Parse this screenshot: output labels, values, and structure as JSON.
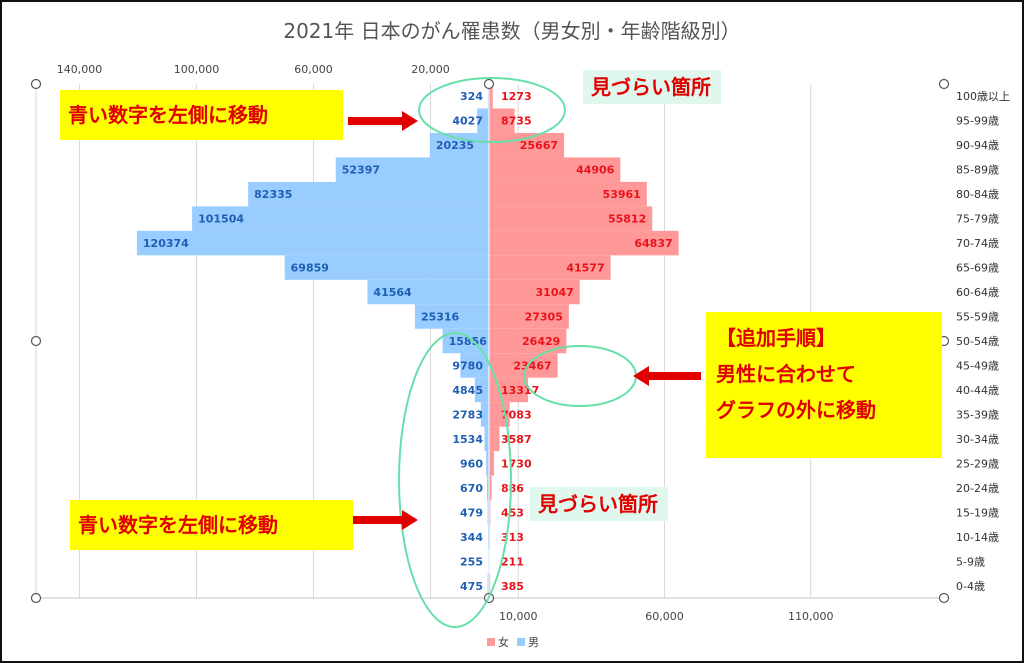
{
  "chart_data": {
    "type": "bar",
    "orientation": "horizontal-population-pyramid",
    "title": "2021年 日本のがん罹患数（男女別・年齢階級別）",
    "categories": [
      "100歳以上",
      "95-99歳",
      "90-94歳",
      "85-89歳",
      "80-84歳",
      "75-79歳",
      "70-74歳",
      "65-69歳",
      "60-64歳",
      "55-59歳",
      "50-54歳",
      "45-49歳",
      "40-44歳",
      "35-39歳",
      "30-34歳",
      "25-29歳",
      "20-24歳",
      "15-19歳",
      "10-14歳",
      "5-9歳",
      "0-4歳"
    ],
    "series": [
      {
        "name": "男",
        "color": "#99ccff",
        "label_color": "#1f5fb4",
        "values": [
          324,
          4027,
          20235,
          52397,
          82335,
          101504,
          120374,
          69859,
          41564,
          25316,
          15856,
          9780,
          4845,
          2783,
          1534,
          960,
          670,
          479,
          344,
          255,
          475
        ]
      },
      {
        "name": "女",
        "color": "#ff9999",
        "label_color": "#e8141b",
        "values": [
          1273,
          8735,
          25667,
          44906,
          53961,
          55812,
          64837,
          41577,
          31047,
          27305,
          26429,
          23467,
          13317,
          7083,
          3587,
          1730,
          886,
          453,
          313,
          211,
          385
        ]
      }
    ],
    "top_axis_ticks": [
      "140,000",
      "100,000",
      "60,000",
      "20,000"
    ],
    "bottom_axis_ticks": [
      "10,000",
      "60,000",
      "110,000"
    ],
    "legend": {
      "position": "bottom",
      "items": [
        "女",
        "男"
      ]
    },
    "grid": true
  },
  "annotations": {
    "blue_left_top": "青い数字を左側に移動",
    "blue_left_bottom": "青い数字を左側に移動",
    "hard_to_see_top": "見づらい箇所",
    "hard_to_see_mid": "見づらい箇所",
    "extra_steps": [
      "【追加手順】",
      "男性に合わせて",
      "グラフの外に移動"
    ]
  },
  "colors": {
    "arrow": "#e00000",
    "highlight_ring": "#66e0a8",
    "gridline": "#d9d9d9"
  }
}
